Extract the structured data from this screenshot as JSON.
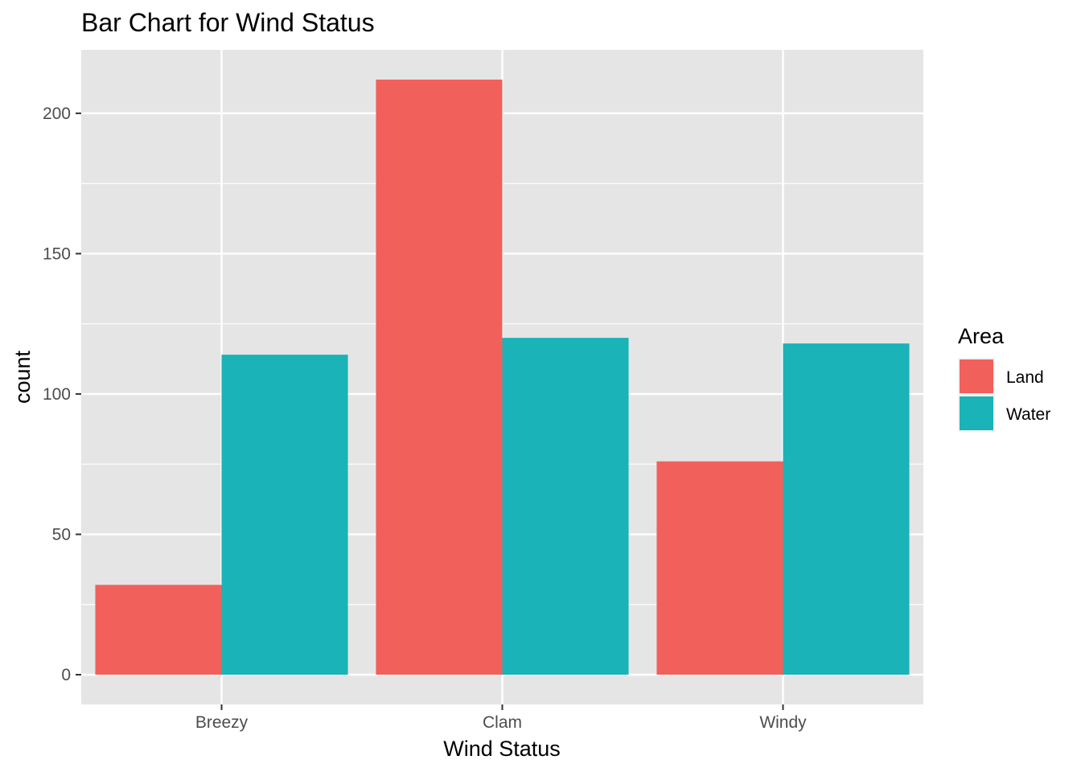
{
  "chart_data": {
    "type": "bar",
    "title": "Bar Chart for Wind Status",
    "xlabel": "Wind Status",
    "ylabel": "count",
    "categories": [
      "Breezy",
      "Clam",
      "Windy"
    ],
    "series": [
      {
        "name": "Land",
        "color": "#F8766D",
        "values": [
          32,
          212,
          76
        ]
      },
      {
        "name": "Water",
        "color": "#00BFC4",
        "values": [
          114,
          120,
          118
        ]
      }
    ],
    "ylim": [
      -10.6,
      222.6
    ],
    "yticks": [
      0,
      50,
      100,
      150,
      200
    ],
    "grid": true,
    "legend": {
      "title": "Area",
      "position": "right"
    },
    "panel_background": "#EBEBEB",
    "bar_colors_rendered": {
      "Land": "#F2605B",
      "Water": "#1AB3B7"
    }
  }
}
